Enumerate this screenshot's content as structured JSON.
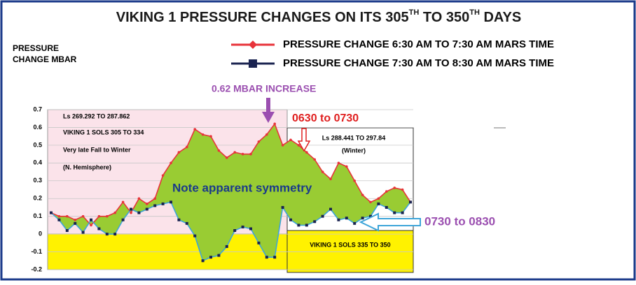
{
  "chart_data": {
    "type": "line",
    "title_parts": [
      "VIKING 1 PRESSURE CHANGES ON ITS 305",
      "TH",
      " TO 350",
      "TH",
      " DAYS"
    ],
    "y_label": [
      "PRESSURE",
      "CHANGE MBAR"
    ],
    "ylim": [
      -0.2,
      0.7
    ],
    "yticks": [
      0.7,
      0.6,
      0.5,
      0.4,
      0.3,
      0.2,
      0.1,
      0,
      -0.1,
      -0.2
    ],
    "grid": true,
    "legend": "top-right",
    "fill_color": "#99cc33",
    "series": [
      {
        "name": "PRESSURE CHANGE 6:30 AM TO 7:30 AM MARS TIME",
        "color": "#e8333a",
        "values": [
          0.12,
          0.1,
          0.1,
          0.08,
          0.1,
          0.05,
          0.1,
          0.1,
          0.12,
          0.18,
          0.12,
          0.2,
          0.17,
          0.2,
          0.33,
          0.4,
          0.46,
          0.49,
          0.59,
          0.56,
          0.55,
          0.47,
          0.43,
          0.46,
          0.45,
          0.45,
          0.52,
          0.56,
          0.62,
          0.5,
          0.53,
          0.5,
          0.46,
          0.42,
          0.35,
          0.31,
          0.4,
          0.38,
          0.3,
          0.22,
          0.18,
          0.2,
          0.24,
          0.26,
          0.25,
          0.18
        ]
      },
      {
        "name": "PRESSURE CHANGE 7:30 AM TO 8:30 AM MARS TIME",
        "color": "#3da5d9",
        "marker_color": "#1a2350",
        "values": [
          0.12,
          0.08,
          0.02,
          0.06,
          0.01,
          0.08,
          0.03,
          0,
          0,
          0.08,
          0.14,
          0.12,
          0.14,
          0.16,
          0.17,
          0.18,
          0.08,
          0.06,
          -0.01,
          -0.15,
          -0.13,
          -0.12,
          -0.07,
          0.02,
          0.04,
          0.03,
          -0.05,
          -0.13,
          -0.13,
          0.15,
          0.08,
          0.05,
          0.05,
          0.07,
          0.1,
          0.14,
          0.08,
          0.09,
          0.06,
          0.09,
          0.1,
          0.17,
          0.15,
          0.12,
          0.12,
          0.18
        ]
      }
    ],
    "annotations": [
      "0.62 MBAR INCREASE",
      "0630 to 0730",
      "0730 to 0830",
      "Note apparent symmetry"
    ],
    "panel_left": [
      "Ls 269.292 TO 287.862",
      "VIKING 1 SOLS 305 TO 334",
      "Very late Fall to Winter",
      "(N. Hemisphere)"
    ],
    "panel_right": [
      "Ls 288.441 TO 297.84",
      "(Winter)",
      "VIKING 1 SOLS 335 TO 350"
    ]
  }
}
